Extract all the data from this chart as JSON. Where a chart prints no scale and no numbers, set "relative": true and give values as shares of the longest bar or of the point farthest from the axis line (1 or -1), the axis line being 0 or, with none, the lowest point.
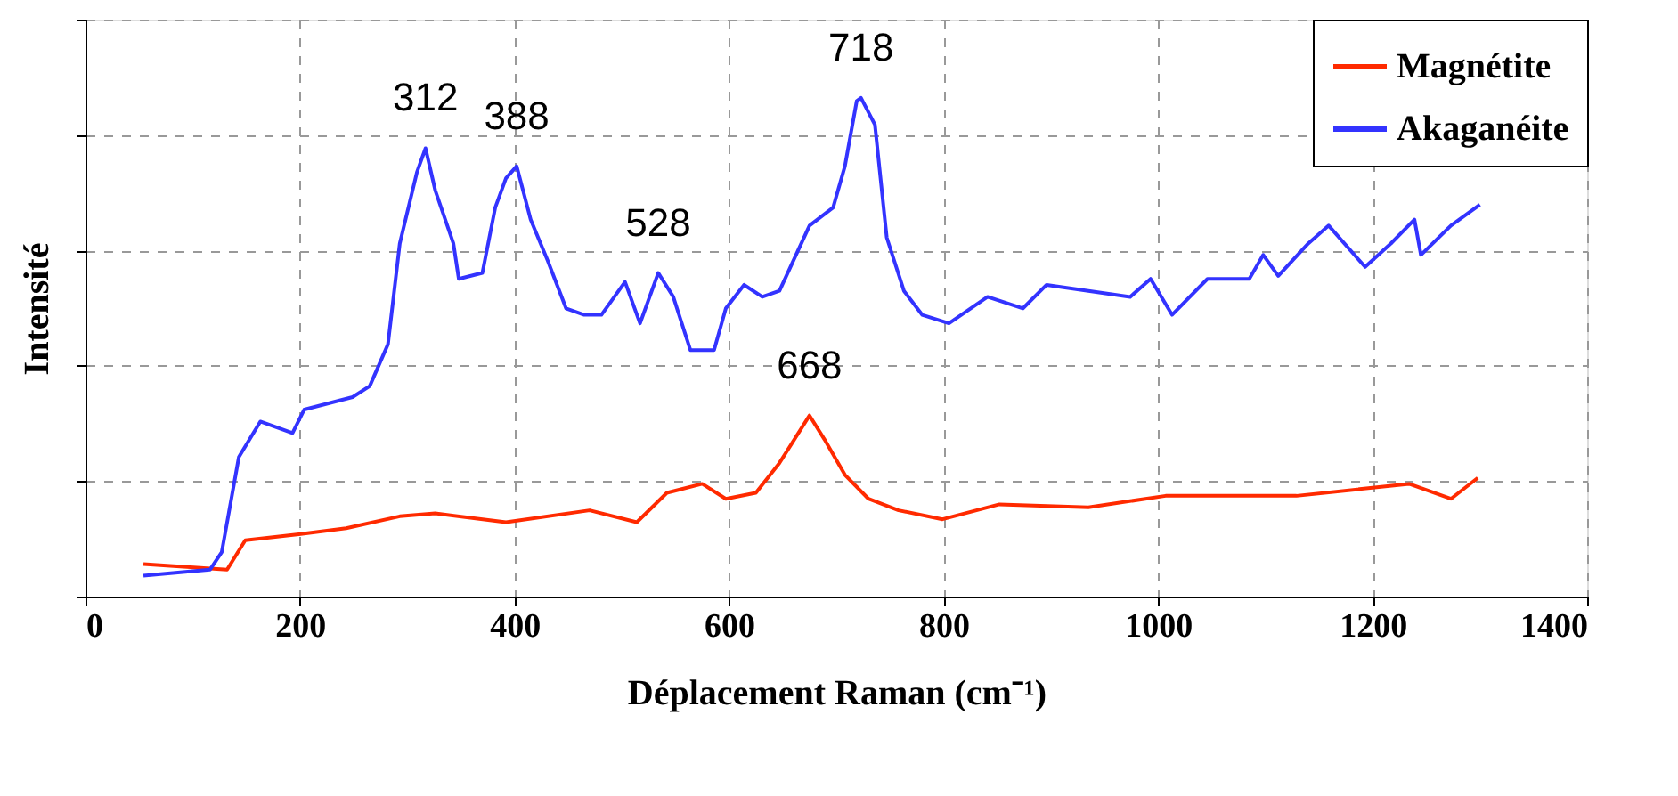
{
  "chart_data": {
    "type": "line",
    "relative": true,
    "xlabel": "Déplacement Raman (cm⁻¹)",
    "ylabel": "Intensité",
    "xlim": [
      0,
      1400
    ],
    "xticks": [
      0,
      200,
      400,
      600,
      800,
      1000,
      1200,
      1400
    ],
    "grid": true,
    "legend": "top right",
    "line_style": "solid",
    "marker": "none",
    "series": [
      {
        "name": "Magnétite",
        "color": "#ff2a00",
        "x": [
          54,
          132,
          149,
          199,
          243,
          293,
          326,
          392,
          470,
          514,
          542,
          575,
          597,
          625,
          647,
          675,
          689,
          708,
          730,
          758,
          799,
          852,
          935,
          1007,
          1129,
          1234,
          1273,
          1298
        ],
        "values": [
          0.065,
          0.054,
          0.113,
          0.125,
          0.137,
          0.161,
          0.167,
          0.149,
          0.173,
          0.149,
          0.208,
          0.226,
          0.196,
          0.208,
          0.268,
          0.363,
          0.315,
          0.244,
          0.196,
          0.173,
          0.155,
          0.185,
          0.179,
          0.202,
          0.202,
          0.226,
          0.196,
          0.238
        ]
      },
      {
        "name": "Akaganéite",
        "color": "#3333ff",
        "x": [
          54,
          116,
          127,
          143,
          163,
          193,
          204,
          249,
          265,
          282,
          293,
          309,
          317,
          326,
          343,
          348,
          370,
          382,
          392,
          402,
          415,
          431,
          448,
          465,
          481,
          503,
          517,
          534,
          548,
          564,
          586,
          597,
          614,
          631,
          647,
          675,
          697,
          708,
          719,
          723,
          736,
          747,
          763,
          780,
          805,
          841,
          874,
          896,
          935,
          974,
          993,
          1013,
          1046,
          1085,
          1098,
          1112,
          1140,
          1159,
          1193,
          1217,
          1239,
          1245,
          1273,
          1300
        ],
        "values": [
          0.042,
          0.054,
          0.089,
          0.28,
          0.351,
          0.328,
          0.375,
          0.4,
          0.422,
          0.506,
          0.708,
          0.851,
          0.899,
          0.815,
          0.708,
          0.637,
          0.649,
          0.78,
          0.839,
          0.863,
          0.756,
          0.673,
          0.578,
          0.565,
          0.565,
          0.631,
          0.548,
          0.649,
          0.601,
          0.494,
          0.494,
          0.578,
          0.625,
          0.601,
          0.613,
          0.744,
          0.78,
          0.863,
          0.994,
          1.0,
          0.946,
          0.72,
          0.613,
          0.565,
          0.548,
          0.601,
          0.578,
          0.625,
          0.613,
          0.601,
          0.637,
          0.565,
          0.637,
          0.637,
          0.685,
          0.643,
          0.708,
          0.744,
          0.661,
          0.708,
          0.756,
          0.685,
          0.744,
          0.786
        ]
      }
    ],
    "annotations": [
      {
        "text": "312",
        "x": 317,
        "y": 0.899
      },
      {
        "text": "388",
        "x": 402,
        "y": 0.863
      },
      {
        "text": "528",
        "x": 534,
        "y": 0.649
      },
      {
        "text": "718",
        "x": 723,
        "y": 1.0
      },
      {
        "text": "668",
        "x": 675,
        "y": 0.363
      }
    ]
  }
}
